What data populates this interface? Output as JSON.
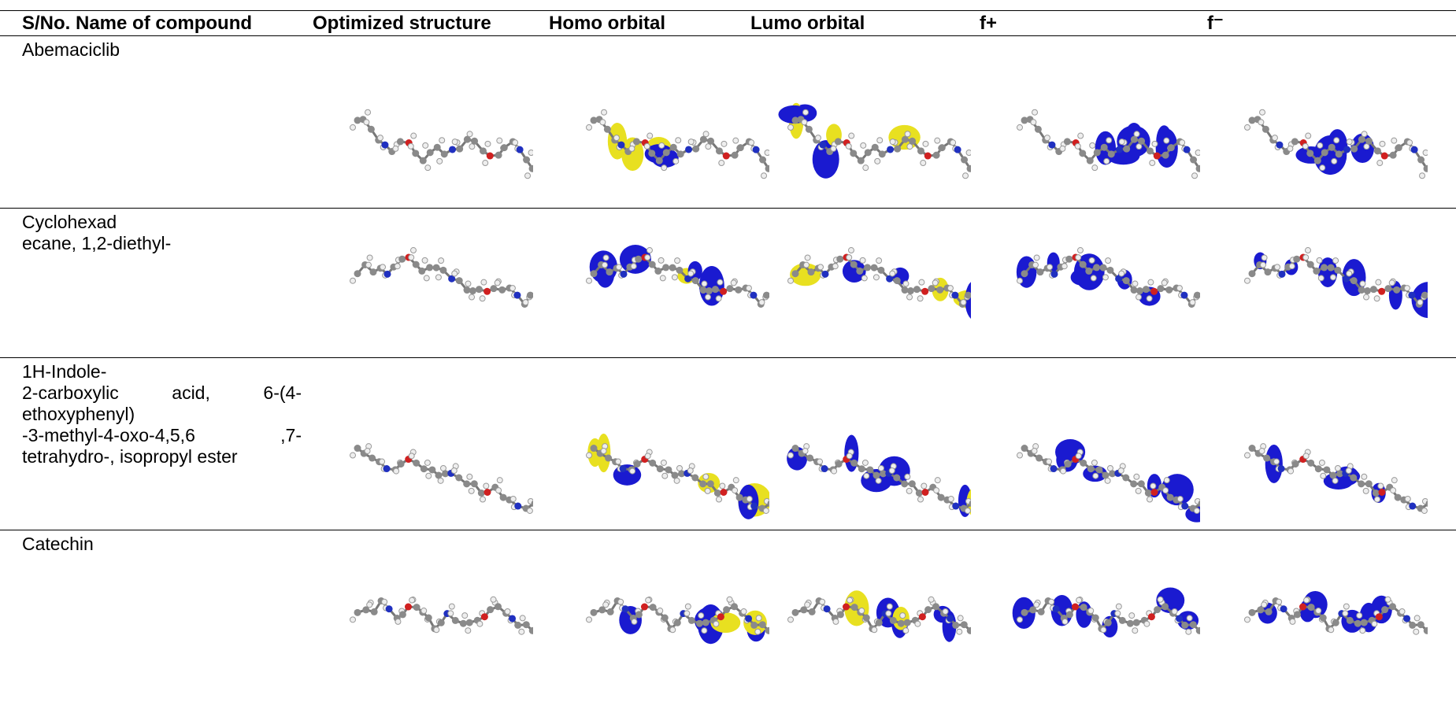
{
  "table": {
    "header": [
      "S/No. Name of compound",
      "Optimized structure",
      "Homo orbital",
      "Lumo orbital",
      "f+",
      "f⁻"
    ],
    "rows": [
      {
        "name": [
          "Abemaciclib"
        ]
      },
      {
        "name": [
          "Cyclohexad",
          "ecane, 1,2-diethyl-"
        ]
      },
      {
        "name": [
          "1H-Indole-",
          "2-carboxylic acid, 6-(4-",
          "ethoxyphenyl)",
          "-3-methyl-4-oxo-4,5,6 ,7-",
          "tetrahydro-, isopropyl ester"
        ]
      },
      {
        "name": [
          "Catechin"
        ]
      }
    ]
  }
}
